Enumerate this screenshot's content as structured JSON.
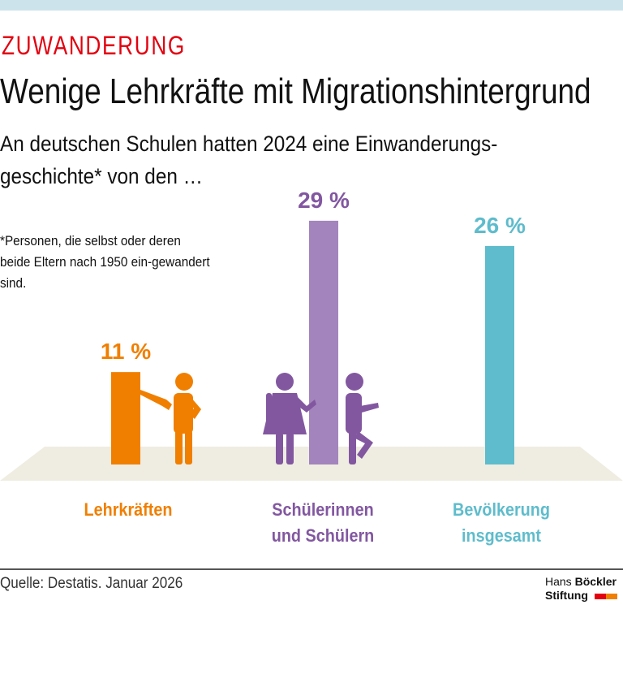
{
  "header": {
    "kicker": "ZUWANDERUNG",
    "title": "Wenige Lehrkräfte mit Migrationshintergrund",
    "subtitle": "An deutschen Schulen hatten 2024 eine Einwanderungs-geschichte* von den …"
  },
  "footnote": "*Personen, die selbst oder deren beide Eltern nach 1950 ein-gewandert sind.",
  "chart_data": {
    "type": "bar",
    "categories": [
      "Lehrkräften",
      "Schülerinnen und Schülern",
      "Bevölkerung insgesamt"
    ],
    "values": [
      11,
      29,
      26
    ],
    "labels": [
      "11 %",
      "29 %",
      "26 %"
    ],
    "unit": "%",
    "colors": [
      "#f07f00",
      "#a384bd",
      "#5ebccc"
    ],
    "label_colors": [
      "#f07f00",
      "#8257a0",
      "#5ebccc"
    ],
    "ylim": [
      0,
      29
    ]
  },
  "footer": {
    "source": "Quelle: Destatis. Januar 2026",
    "logo_line1_a": "Hans ",
    "logo_line1_b": "Böckler",
    "logo_line2": "Stiftung"
  }
}
